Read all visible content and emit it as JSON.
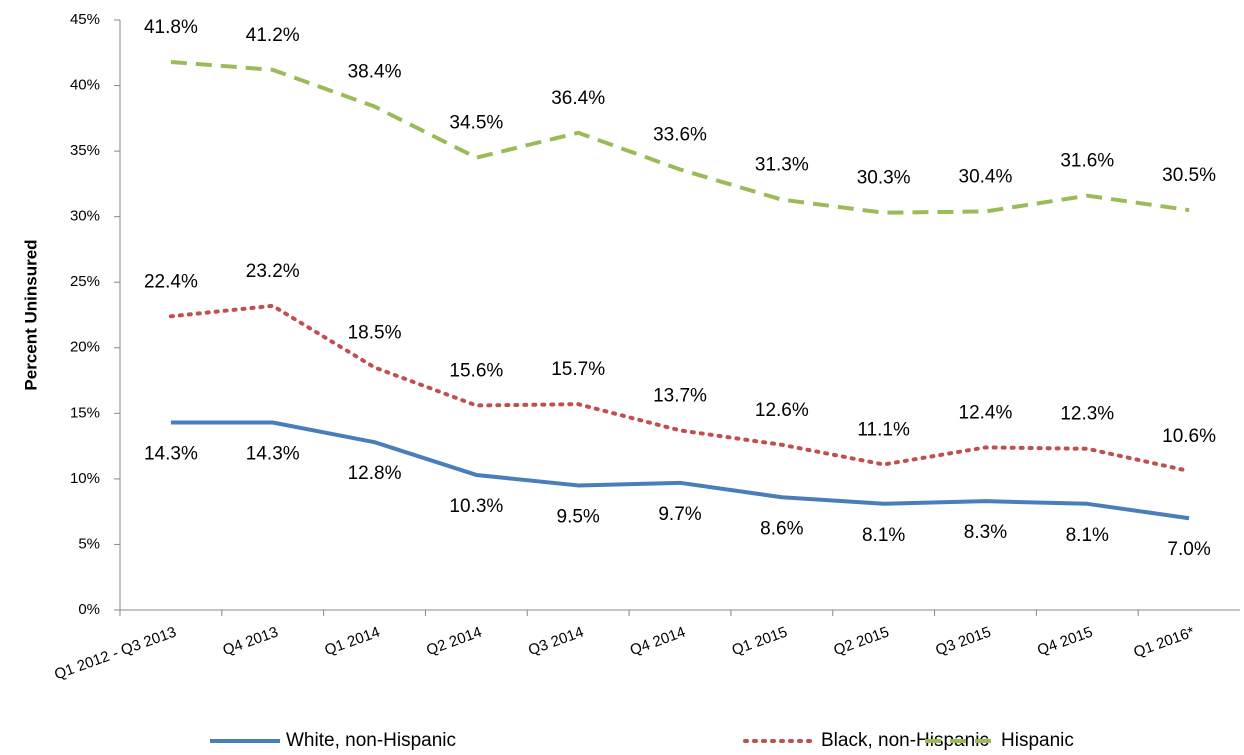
{
  "chart_data": {
    "type": "line",
    "y_label": "Percent Uninsured",
    "categories": [
      "Q1 2012 - Q3 2013",
      "Q4 2013",
      "Q1 2014",
      "Q2 2014",
      "Q3 2014",
      "Q4 2014",
      "Q1 2015",
      "Q2 2015",
      "Q3 2015",
      "Q4 2015",
      "Q1 2016*"
    ],
    "series": [
      {
        "name": "White, non-Hispanic",
        "color": "#4a7ebb",
        "dash": "solid",
        "label_position": "below",
        "values": [
          14.3,
          14.3,
          12.8,
          10.3,
          9.5,
          9.7,
          8.6,
          8.1,
          8.3,
          8.1,
          7.0
        ],
        "value_labels": [
          "14.3%",
          "14.3%",
          "12.8%",
          "10.3%",
          "9.5%",
          "9.7%",
          "8.6%",
          "8.1%",
          "8.3%",
          "8.1%",
          "7.0%"
        ]
      },
      {
        "name": "Black, non-Hispanic",
        "color": "#c0504d",
        "dash": "dot",
        "label_position": "above",
        "values": [
          22.4,
          23.2,
          18.5,
          15.6,
          15.7,
          13.7,
          12.6,
          11.1,
          12.4,
          12.3,
          10.6
        ],
        "value_labels": [
          "22.4%",
          "23.2%",
          "18.5%",
          "15.6%",
          "15.7%",
          "13.7%",
          "12.6%",
          "11.1%",
          "12.4%",
          "12.3%",
          "10.6%"
        ]
      },
      {
        "name": "Hispanic",
        "color": "#9bbb59",
        "dash": "dash",
        "label_position": "above",
        "values": [
          41.8,
          41.2,
          38.4,
          34.5,
          36.4,
          33.6,
          31.3,
          30.3,
          30.4,
          31.6,
          30.5
        ],
        "value_labels": [
          "41.8%",
          "41.2%",
          "38.4%",
          "34.5%",
          "36.4%",
          "33.6%",
          "31.3%",
          "30.3%",
          "30.4%",
          "31.6%",
          "30.5%"
        ]
      }
    ],
    "ylim": [
      0,
      45
    ],
    "yticks": [
      {
        "value": 0,
        "label": "0%"
      },
      {
        "value": 5,
        "label": "5%"
      },
      {
        "value": 10,
        "label": "10%"
      },
      {
        "value": 15,
        "label": "15%"
      },
      {
        "value": 20,
        "label": "20%"
      },
      {
        "value": 25,
        "label": "25%"
      },
      {
        "value": 30,
        "label": "30%"
      },
      {
        "value": 35,
        "label": "35%"
      },
      {
        "value": 40,
        "label": "40%"
      },
      {
        "value": 45,
        "label": "45%"
      }
    ],
    "grid": false,
    "legend": "bottom"
  }
}
